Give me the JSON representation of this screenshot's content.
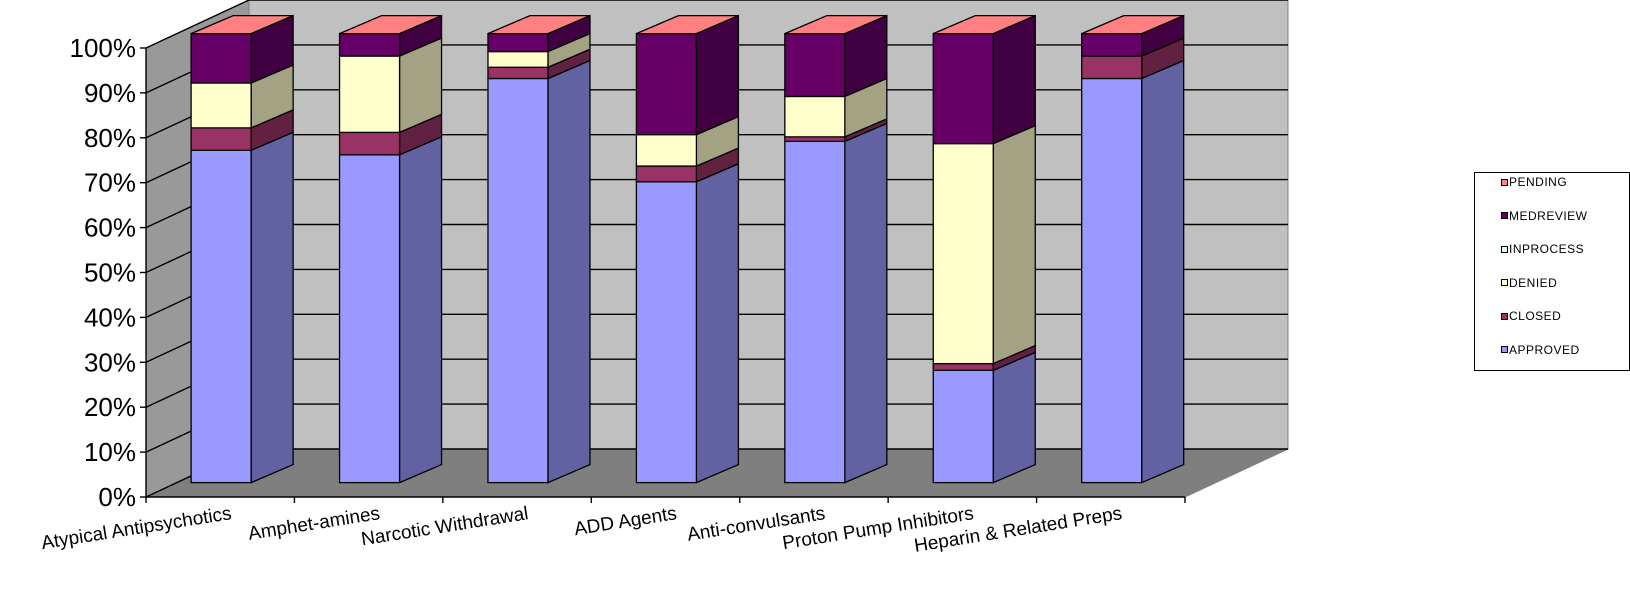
{
  "chart_data": {
    "type": "bar",
    "stacked": true,
    "three_d": true,
    "percent_stacked": true,
    "title": "",
    "xlabel": "",
    "ylabel": "",
    "ylim": [
      0,
      100
    ],
    "y_ticks": [
      "0%",
      "10%",
      "20%",
      "30%",
      "40%",
      "50%",
      "60%",
      "70%",
      "80%",
      "90%",
      "100%"
    ],
    "grid": true,
    "legend_position": "right",
    "categories": [
      "Atypical Antipsychotics",
      "Amphet-amines",
      "Narcotic Withdrawal",
      "ADD Agents",
      "Anti-convulsants",
      "Proton Pump Inhibitors",
      "Heparin & Related Preps"
    ],
    "series": [
      {
        "name": "APPROVED",
        "color": "#9999FF",
        "values": [
          74,
          73,
          90,
          67,
          76,
          25,
          90
        ]
      },
      {
        "name": "CLOSED",
        "color": "#993366",
        "values": [
          5,
          5,
          2.5,
          3.5,
          1,
          1.5,
          5
        ]
      },
      {
        "name": "DENIED",
        "color": "#FFFFCC",
        "values": [
          10,
          17,
          3.5,
          7,
          9,
          49,
          0
        ]
      },
      {
        "name": "INPROCESS",
        "color": "#CCFFFF",
        "values": [
          0,
          0,
          0,
          0,
          0,
          0,
          0
        ]
      },
      {
        "name": "MEDREVIEW",
        "color": "#660066",
        "values": [
          11,
          5,
          4,
          22.5,
          14,
          24.5,
          5
        ]
      },
      {
        "name": "PENDING",
        "color": "#FF8080",
        "values": [
          0,
          0,
          0,
          0,
          0,
          0,
          0
        ]
      }
    ]
  }
}
